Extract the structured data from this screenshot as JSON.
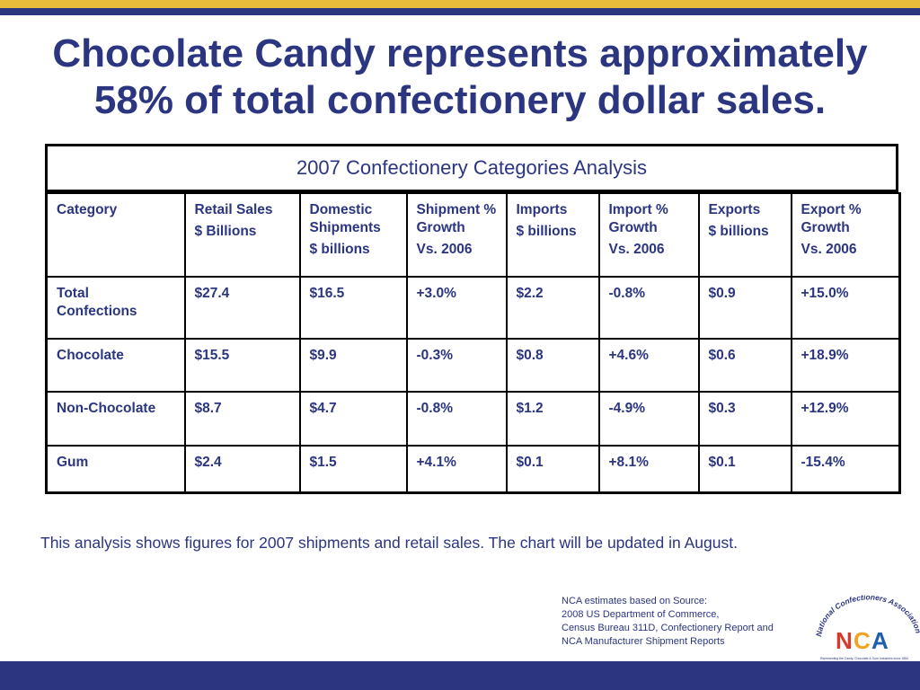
{
  "title": {
    "line1": "Chocolate Candy represents approximately",
    "line2": "58% of total confectionery dollar sales."
  },
  "table": {
    "caption": "2007 Confectionery Categories Analysis",
    "headers": [
      [
        "Category"
      ],
      [
        "Retail Sales",
        "$ Billions"
      ],
      [
        "Domestic Shipments",
        "$ billions"
      ],
      [
        "Shipment % Growth",
        "Vs. 2006"
      ],
      [
        "Imports",
        "$ billions"
      ],
      [
        "Import % Growth",
        "Vs. 2006"
      ],
      [
        "Exports",
        "$ billions"
      ],
      [
        "Export % Growth",
        "Vs. 2006"
      ]
    ],
    "rows": [
      [
        "Total Confections",
        "$27.4",
        "$16.5",
        "+3.0%",
        "$2.2",
        "-0.8%",
        "$0.9",
        "+15.0%"
      ],
      [
        "Chocolate",
        "$15.5",
        "$9.9",
        "-0.3%",
        "$0.8",
        "+4.6%",
        "$0.6",
        "+18.9%"
      ],
      [
        "Non-Chocolate",
        "$8.7",
        "$4.7",
        "-0.8%",
        "$1.2",
        "-4.9%",
        "$0.3",
        "+12.9%"
      ],
      [
        "Gum",
        "$2.4",
        "$1.5",
        "+4.1%",
        "$0.1",
        "+8.1%",
        "$0.1",
        "-15.4%"
      ]
    ]
  },
  "note": "This analysis shows figures for 2007 shipments and retail sales.  The chart will be updated in August.",
  "source": {
    "line1": "NCA estimates based on Source:",
    "line2": "2008 US Department of Commerce,",
    "line3": "Census Bureau 311D, Confectionery Report and",
    "line4": "NCA Manufacturer Shipment Reports"
  },
  "logo": {
    "arc_text": "National Confectioners Association",
    "letters": [
      "N",
      "C",
      "A"
    ],
    "tagline": "Representing the Candy, Chocolate & Gum Industries since 1884"
  },
  "colors": {
    "navy": "#2b3580",
    "gold": "#e9bd3b",
    "logo_red": "#d73a2a",
    "logo_orange": "#f1a21e",
    "logo_blue": "#1e5fae"
  }
}
